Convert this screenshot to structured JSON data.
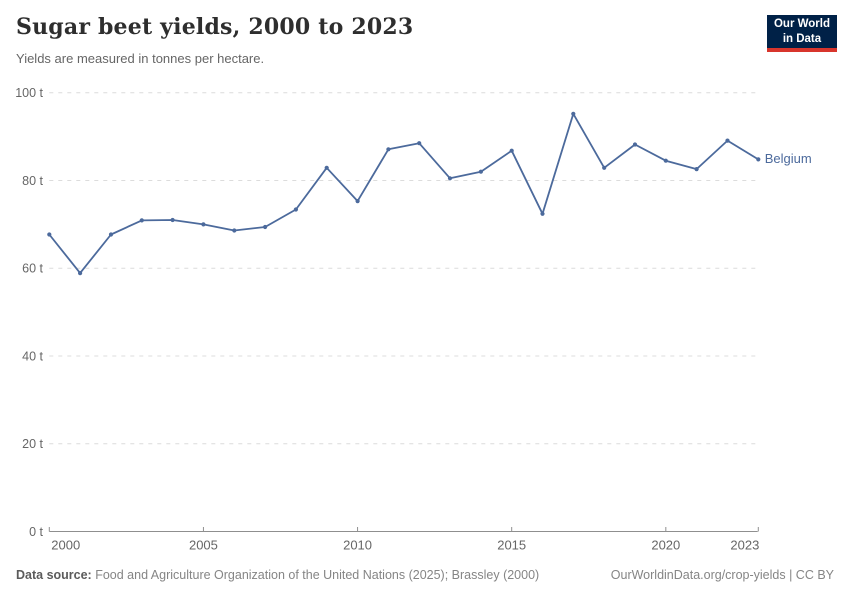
{
  "chart_data": {
    "type": "line",
    "title": "Sugar beet yields, 2000 to 2023",
    "subtitle": "Yields are measured in tonnes per hectare.",
    "xlabel": "",
    "ylabel": "",
    "unit": "t",
    "x": [
      2000,
      2001,
      2002,
      2003,
      2004,
      2005,
      2006,
      2007,
      2008,
      2009,
      2010,
      2011,
      2012,
      2013,
      2014,
      2015,
      2016,
      2017,
      2018,
      2019,
      2020,
      2021,
      2022,
      2023
    ],
    "series": [
      {
        "name": "Belgium",
        "color": "#4c6a9c",
        "values": [
          67.7,
          58.9,
          67.7,
          70.9,
          71.0,
          70.0,
          68.6,
          69.4,
          73.4,
          82.9,
          75.3,
          87.1,
          88.5,
          80.5,
          82.0,
          86.8,
          72.4,
          95.2,
          82.9,
          88.2,
          84.5,
          82.6,
          89.1,
          84.8
        ]
      }
    ],
    "ylim": [
      0,
      100
    ],
    "yticks": [
      0,
      20,
      40,
      60,
      80,
      100
    ],
    "ytick_suffix": " t",
    "xticks": [
      2000,
      2005,
      2010,
      2015,
      2020,
      2023
    ],
    "grid": "horizontal-dashed",
    "legend_position": "end-of-line-label"
  },
  "logo": {
    "line1": "Our World",
    "line2": "in Data",
    "bg_color": "#002147",
    "accent_color": "#d8352c"
  },
  "footer": {
    "data_source_label": "Data source:",
    "data_source_text": " Food and Agriculture Organization of the United Nations (2025); Brassley (2000)",
    "credit": "OurWorldinData.org/crop-yields | CC BY"
  },
  "colors": {
    "line": "#4c6a9c",
    "grid": "#dcdcdc",
    "axis": "#8f8f8f",
    "tick_label": "#666666",
    "title": "#2e2e2e",
    "subtitle": "#666666",
    "footer": "#858585"
  }
}
